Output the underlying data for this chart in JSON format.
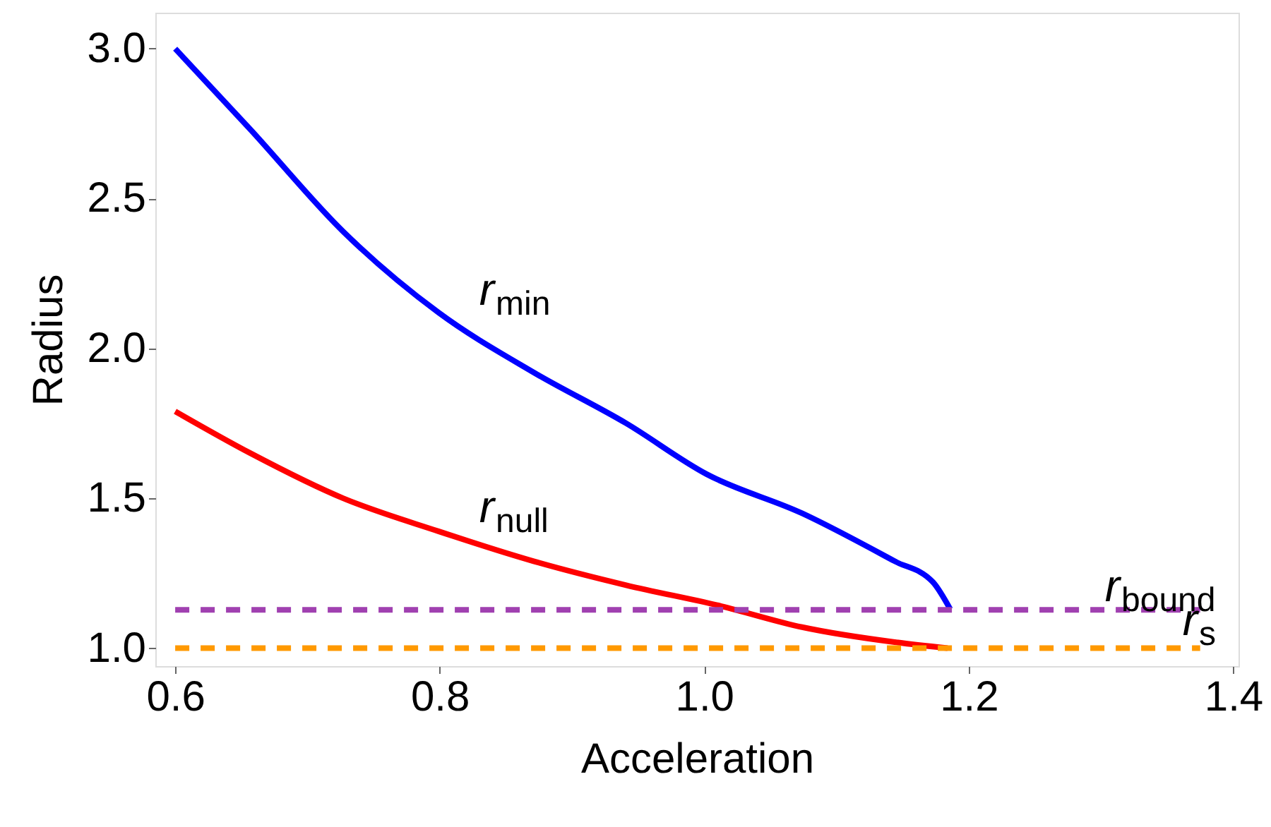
{
  "chart_data": {
    "type": "line",
    "xlabel": "Acceleration",
    "ylabel": "Radius",
    "xlim": [
      0.585,
      1.404
    ],
    "ylim": [
      0.94,
      3.12
    ],
    "xticks": [
      0.6,
      0.8,
      {
        "value": 1,
        "label": "1.0"
      },
      1.2,
      1.4
    ],
    "yticks": [
      {
        "value": 1,
        "label": "1.0"
      },
      1.5,
      {
        "value": 2,
        "label": "2.0"
      },
      2.5,
      {
        "value": 3,
        "label": "3.0"
      }
    ],
    "grid": false,
    "line_style": "solid",
    "series": [
      {
        "color": "#0000ff",
        "x": [
          0.6,
          0.657,
          0.727,
          0.799,
          0.871,
          0.941,
          1.002,
          1.074,
          1.144,
          1.173,
          1.186
        ],
        "values": [
          3.0,
          2.73,
          2.39,
          2.12,
          1.92,
          1.75,
          1.58,
          1.45,
          1.29,
          1.22,
          1.13
        ]
      },
      {
        "color": "#ff0000",
        "x": [
          0.6,
          0.657,
          0.727,
          0.799,
          0.871,
          0.941,
          1.013,
          1.074,
          1.144,
          1.184
        ],
        "values": [
          1.79,
          1.65,
          1.5,
          1.39,
          1.29,
          1.21,
          1.14,
          1.07,
          1.02,
          1.0
        ]
      },
      {
        "color": "#a040b0",
        "line_style": "dashed",
        "x": [
          0.6,
          1.375
        ],
        "values": [
          1.128,
          1.128
        ]
      },
      {
        "color": "#ff9900",
        "line_style": "dashed",
        "x": [
          0.6,
          1.375
        ],
        "values": [
          1.0,
          1.0
        ]
      }
    ],
    "annotations": [
      "r$_{min}$",
      "r$_{null}$",
      "r$_{bound}$",
      "r$_{s}$"
    ]
  }
}
